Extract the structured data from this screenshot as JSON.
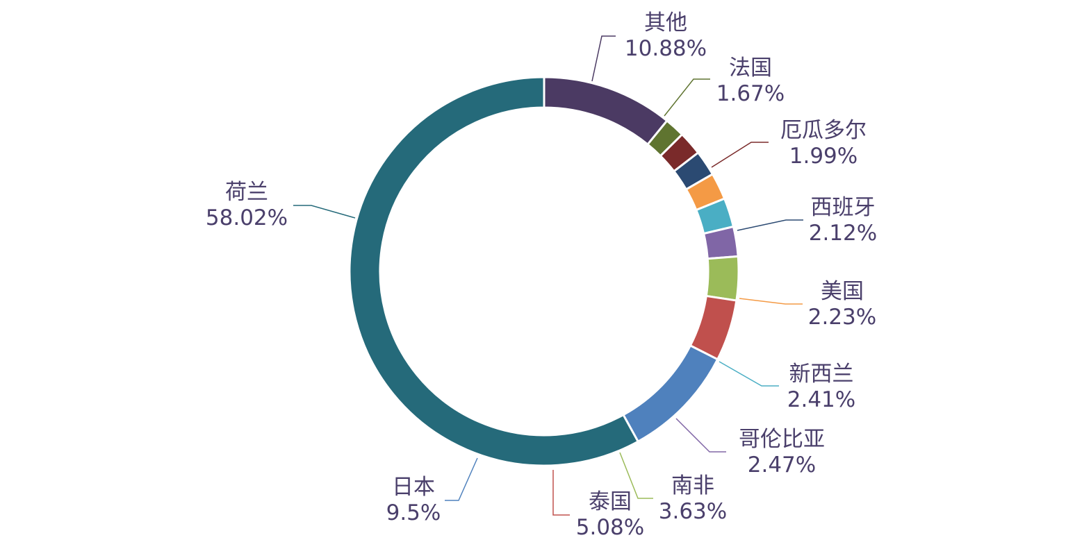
{
  "chart_data": {
    "type": "pie",
    "variant": "donut",
    "start_angle_deg": 0,
    "direction": "clockwise",
    "labels": [
      "其他",
      "法国",
      "厄瓜多尔",
      "西班牙",
      "美国",
      "新西兰",
      "哥伦比亚",
      "南非",
      "泰国",
      "日本",
      "荷兰"
    ],
    "values": [
      10.88,
      1.67,
      1.99,
      2.12,
      2.23,
      2.41,
      2.47,
      3.63,
      5.08,
      9.5,
      58.02
    ],
    "value_labels": [
      "10.88%",
      "1.67%",
      "1.99%",
      "2.12%",
      "2.23%",
      "2.41%",
      "2.47%",
      "3.63%",
      "5.08%",
      "9.5%",
      "58.02%"
    ],
    "colors": [
      "#4b3a63",
      "#5f7430",
      "#7a2a2a",
      "#2b4a72",
      "#f49a45",
      "#4aaec4",
      "#8066a6",
      "#9bbb59",
      "#c0504d",
      "#4f81bd",
      "#256a7a"
    ],
    "legend": "none",
    "label_color": "#4a3f6b"
  }
}
